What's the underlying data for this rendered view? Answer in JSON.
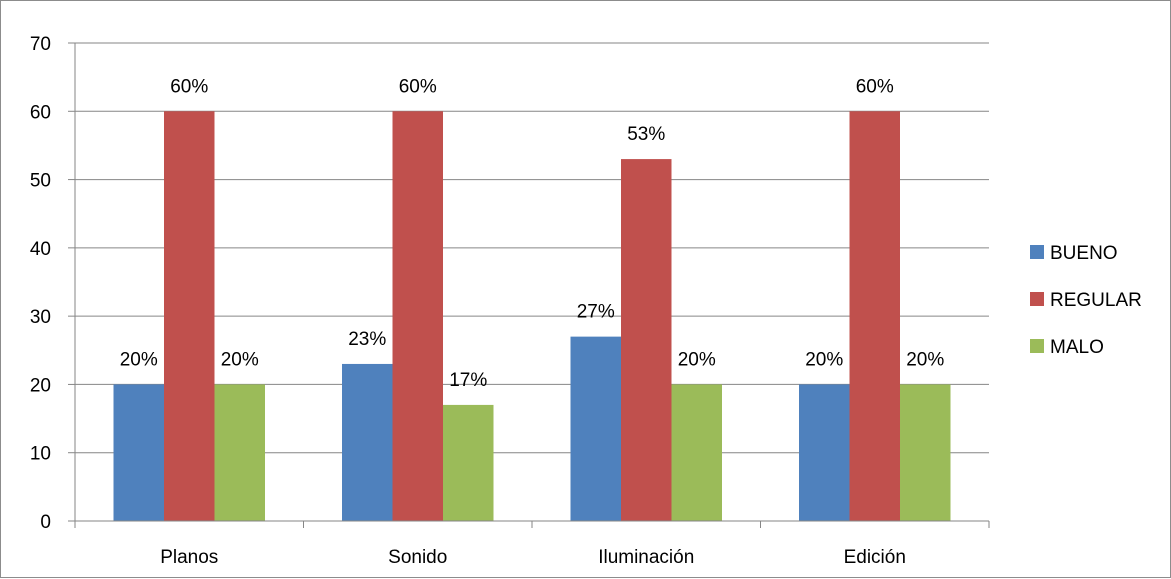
{
  "chart_data": {
    "type": "bar",
    "categories": [
      "Planos",
      "Sonido",
      "Iluminación",
      "Edición"
    ],
    "series": [
      {
        "name": "BUENO",
        "color": "#4f81bd",
        "values": [
          20,
          23,
          27,
          20
        ],
        "labels": [
          "20%",
          "23%",
          "27%",
          "20%"
        ]
      },
      {
        "name": "REGULAR",
        "color": "#c0504d",
        "values": [
          60,
          60,
          53,
          60
        ],
        "labels": [
          "60%",
          "60%",
          "53%",
          "60%"
        ]
      },
      {
        "name": "MALO",
        "color": "#9bbb59",
        "values": [
          20,
          17,
          20,
          20
        ],
        "labels": [
          "20%",
          "17%",
          "20%",
          "20%"
        ]
      }
    ],
    "yticks": [
      0,
      10,
      20,
      30,
      40,
      50,
      60,
      70
    ],
    "ylim": [
      0,
      70
    ],
    "title": "",
    "xlabel": "",
    "ylabel": "",
    "grid": true,
    "legend": "right"
  }
}
